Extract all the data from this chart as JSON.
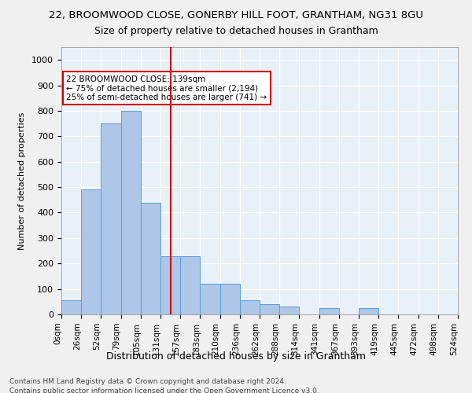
{
  "title_line1": "22, BROOMWOOD CLOSE, GONERBY HILL FOOT, GRANTHAM, NG31 8GU",
  "title_line2": "Size of property relative to detached houses in Grantham",
  "xlabel": "Distribution of detached houses by size in Grantham",
  "ylabel": "Number of detached properties",
  "bin_labels": [
    "0sqm",
    "26sqm",
    "52sqm",
    "79sqm",
    "105sqm",
    "131sqm",
    "157sqm",
    "183sqm",
    "210sqm",
    "236sqm",
    "262sqm",
    "288sqm",
    "314sqm",
    "341sqm",
    "367sqm",
    "393sqm",
    "419sqm",
    "445sqm",
    "472sqm",
    "498sqm",
    "524sqm"
  ],
  "bar_heights": [
    55,
    490,
    750,
    800,
    440,
    230,
    230,
    120,
    120,
    55,
    40,
    30,
    0,
    25,
    0,
    25,
    0,
    0,
    0,
    0
  ],
  "bar_color": "#aec6e8",
  "bar_edge_color": "#5a9fd4",
  "vline_x": 5.5,
  "vline_color": "#cc0000",
  "annotation_text": "22 BROOMWOOD CLOSE: 139sqm\n← 75% of detached houses are smaller (2,194)\n25% of semi-detached houses are larger (741) →",
  "annotation_box_color": "#ffffff",
  "annotation_box_edge": "#cc0000",
  "footer_line1": "Contains HM Land Registry data © Crown copyright and database right 2024.",
  "footer_line2": "Contains public sector information licensed under the Open Government Licence v3.0.",
  "ylim": [
    0,
    1050
  ],
  "background_color": "#e8f0f8",
  "grid_color": "#ffffff",
  "fig_bg_color": "#f0f0f0"
}
